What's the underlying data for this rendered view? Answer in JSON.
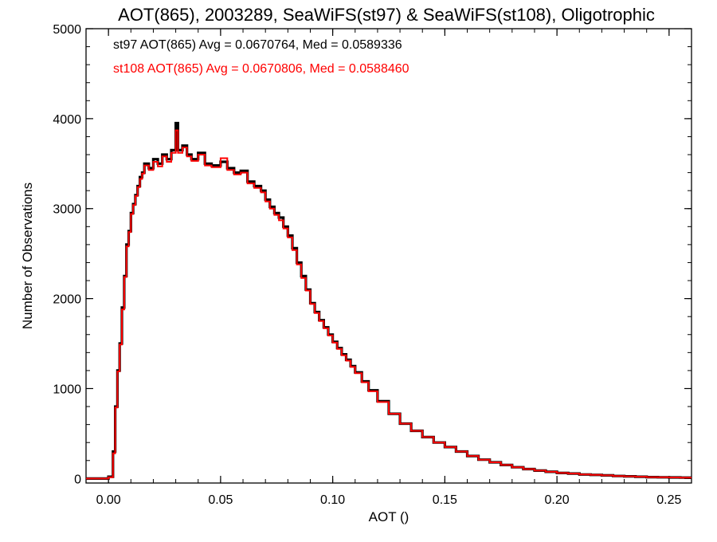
{
  "chart_data": {
    "type": "line",
    "step": true,
    "title": "AOT(865), 2003289, SeaWiFS(st97) & SeaWiFS(st108), Oligotrophic",
    "xlabel": "AOT ()",
    "ylabel": "Number of Observations",
    "xlim": [
      -0.01,
      0.26
    ],
    "ylim": [
      -50,
      5000
    ],
    "xticks": [
      0.0,
      0.05,
      0.1,
      0.15,
      0.2,
      0.25
    ],
    "xtick_labels": [
      "0.00",
      "0.05",
      "0.10",
      "0.15",
      "0.20",
      "0.25"
    ],
    "yticks": [
      0,
      1000,
      2000,
      3000,
      4000,
      5000
    ],
    "ytick_labels": [
      "0",
      "1000",
      "2000",
      "3000",
      "4000",
      "5000"
    ],
    "grid": false,
    "legend_position": "top-left",
    "x": [
      -0.01,
      -0.006,
      -0.002,
      0.0,
      0.002,
      0.003,
      0.004,
      0.005,
      0.006,
      0.007,
      0.008,
      0.009,
      0.01,
      0.011,
      0.012,
      0.013,
      0.014,
      0.015,
      0.016,
      0.018,
      0.02,
      0.022,
      0.024,
      0.026,
      0.028,
      0.03,
      0.031,
      0.033,
      0.035,
      0.037,
      0.04,
      0.043,
      0.046,
      0.05,
      0.053,
      0.056,
      0.059,
      0.062,
      0.065,
      0.068,
      0.07,
      0.072,
      0.074,
      0.076,
      0.078,
      0.08,
      0.082,
      0.084,
      0.086,
      0.088,
      0.09,
      0.092,
      0.094,
      0.096,
      0.098,
      0.1,
      0.102,
      0.104,
      0.106,
      0.108,
      0.11,
      0.113,
      0.116,
      0.12,
      0.125,
      0.13,
      0.135,
      0.14,
      0.145,
      0.15,
      0.155,
      0.16,
      0.165,
      0.17,
      0.175,
      0.18,
      0.185,
      0.19,
      0.195,
      0.2,
      0.205,
      0.21,
      0.215,
      0.22,
      0.225,
      0.23,
      0.235,
      0.24,
      0.245,
      0.25,
      0.255,
      0.26
    ],
    "series": [
      {
        "name": "st97",
        "color": "#000000",
        "values": [
          0,
          0,
          0,
          20,
          300,
          800,
          1200,
          1500,
          1900,
          2250,
          2600,
          2750,
          2950,
          3050,
          3150,
          3250,
          3350,
          3400,
          3500,
          3450,
          3550,
          3500,
          3600,
          3550,
          3650,
          3950,
          3650,
          3700,
          3600,
          3550,
          3620,
          3500,
          3480,
          3520,
          3450,
          3400,
          3420,
          3300,
          3250,
          3200,
          3100,
          3020,
          2950,
          2900,
          2800,
          2700,
          2560,
          2400,
          2250,
          2100,
          1950,
          1850,
          1760,
          1680,
          1600,
          1520,
          1450,
          1380,
          1320,
          1250,
          1180,
          1080,
          980,
          860,
          720,
          610,
          530,
          460,
          400,
          350,
          300,
          250,
          210,
          180,
          150,
          125,
          105,
          88,
          75,
          62,
          55,
          45,
          40,
          35,
          28,
          24,
          20,
          16,
          14,
          12,
          10,
          8
        ]
      },
      {
        "name": "st108",
        "color": "#ff0000",
        "values": [
          0,
          0,
          0,
          15,
          280,
          790,
          1190,
          1490,
          1880,
          2240,
          2580,
          2740,
          2940,
          3040,
          3140,
          3240,
          3330,
          3390,
          3480,
          3430,
          3520,
          3470,
          3580,
          3520,
          3620,
          3870,
          3620,
          3680,
          3580,
          3530,
          3600,
          3480,
          3460,
          3560,
          3430,
          3380,
          3400,
          3280,
          3230,
          3180,
          3080,
          3000,
          2930,
          2870,
          2780,
          2680,
          2540,
          2380,
          2230,
          2090,
          1940,
          1840,
          1750,
          1670,
          1590,
          1510,
          1440,
          1370,
          1310,
          1240,
          1170,
          1070,
          970,
          850,
          720,
          610,
          530,
          460,
          400,
          350,
          300,
          250,
          210,
          180,
          150,
          125,
          105,
          88,
          75,
          62,
          55,
          45,
          40,
          35,
          28,
          24,
          20,
          16,
          14,
          12,
          10,
          8
        ]
      }
    ],
    "annotations": [
      {
        "text": "st97 AOT(865) Avg = 0.0670764, Med = 0.0589336",
        "color": "#000000"
      },
      {
        "text": "st108 AOT(865) Avg = 0.0670806, Med = 0.0588460",
        "color": "#ff0000"
      }
    ]
  }
}
